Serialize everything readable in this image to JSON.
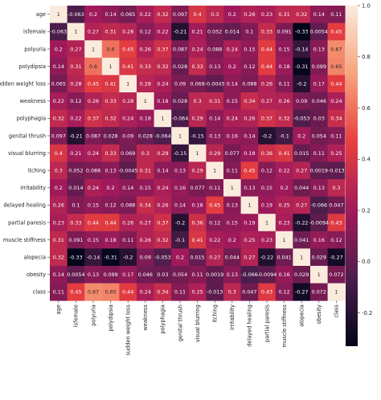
{
  "chart_data": {
    "type": "heatmap",
    "title": "",
    "xlabel": "",
    "ylabel": "",
    "labels": [
      "age",
      "isfemale",
      "polyuria",
      "polydipsia",
      "sudden weight loss",
      "weakness",
      "polyphagia",
      "genital thrush",
      "visual blurring",
      "itching",
      "irritability",
      "delayed healing",
      "partial paresis",
      "muscle stiffness",
      "alopecia",
      "obesity",
      "class"
    ],
    "matrix": [
      [
        "1",
        "-0.063",
        "0.2",
        "0.14",
        "0.065",
        "0.22",
        "0.32",
        "0.097",
        "0.4",
        "0.3",
        "0.2",
        "0.26",
        "0.23",
        "0.31",
        "0.32",
        "0.14",
        "0.11"
      ],
      [
        "-0.063",
        "1",
        "0.27",
        "0.31",
        "0.28",
        "0.12",
        "0.22",
        "-0.21",
        "0.21",
        "0.052",
        "0.014",
        "0.1",
        "0.33",
        "0.091",
        "-0.33",
        "0.0054",
        "0.45"
      ],
      [
        "0.2",
        "0.27",
        "1",
        "0.6",
        "0.45",
        "0.26",
        "0.37",
        "0.087",
        "0.24",
        "0.088",
        "0.24",
        "0.15",
        "0.44",
        "0.15",
        "-0.14",
        "0.13",
        "0.67"
      ],
      [
        "0.14",
        "0.31",
        "0.6",
        "1",
        "0.41",
        "0.33",
        "0.32",
        "0.028",
        "0.33",
        "0.13",
        "0.2",
        "0.12",
        "0.44",
        "0.18",
        "-0.31",
        "0.099",
        "0.65"
      ],
      [
        "0.065",
        "0.28",
        "0.45",
        "0.41",
        "1",
        "0.28",
        "0.24",
        "0.09",
        "0.069",
        "-0.0045",
        "0.14",
        "0.088",
        "0.26",
        "0.11",
        "-0.2",
        "0.17",
        "0.44"
      ],
      [
        "0.22",
        "0.12",
        "0.26",
        "0.33",
        "0.28",
        "1",
        "0.18",
        "0.028",
        "0.3",
        "0.31",
        "0.15",
        "0.34",
        "0.27",
        "0.26",
        "0.09",
        "0.046",
        "0.24"
      ],
      [
        "0.32",
        "0.22",
        "0.37",
        "0.32",
        "0.24",
        "0.18",
        "1",
        "-0.064",
        "0.29",
        "0.14",
        "0.24",
        "0.26",
        "0.37",
        "0.32",
        "-0.053",
        "0.03",
        "0.34"
      ],
      [
        "0.097",
        "-0.21",
        "0.087",
        "0.028",
        "0.09",
        "0.028",
        "-0.064",
        "1",
        "-0.15",
        "0.13",
        "0.16",
        "0.14",
        "-0.2",
        "-0.1",
        "0.2",
        "0.054",
        "0.11"
      ],
      [
        "0.4",
        "0.21",
        "0.24",
        "0.33",
        "0.069",
        "0.3",
        "0.29",
        "-0.15",
        "1",
        "0.29",
        "0.077",
        "0.18",
        "0.36",
        "0.41",
        "0.015",
        "0.11",
        "0.25"
      ],
      [
        "0.3",
        "0.052",
        "0.088",
        "0.13",
        "-0.0045",
        "0.31",
        "0.14",
        "0.13",
        "0.29",
        "1",
        "0.11",
        "0.45",
        "0.12",
        "0.22",
        "0.27",
        "0.0019",
        "-0.013"
      ],
      [
        "0.2",
        "0.014",
        "0.24",
        "0.2",
        "0.14",
        "0.15",
        "0.24",
        "0.16",
        "0.077",
        "0.11",
        "1",
        "0.13",
        "0.15",
        "0.2",
        "0.044",
        "0.13",
        "0.3"
      ],
      [
        "0.26",
        "0.1",
        "0.15",
        "0.12",
        "0.088",
        "0.34",
        "0.26",
        "0.14",
        "0.18",
        "0.45",
        "0.13",
        "1",
        "0.19",
        "0.25",
        "0.27",
        "-0.066",
        "0.047"
      ],
      [
        "0.23",
        "0.33",
        "0.44",
        "0.44",
        "0.26",
        "0.27",
        "0.37",
        "-0.2",
        "0.36",
        "0.12",
        "0.15",
        "0.19",
        "1",
        "0.23",
        "-0.22",
        "-0.0094",
        "0.43"
      ],
      [
        "0.31",
        "0.091",
        "0.15",
        "0.18",
        "0.11",
        "0.26",
        "0.32",
        "-0.1",
        "0.41",
        "0.22",
        "0.2",
        "0.25",
        "0.23",
        "1",
        "0.041",
        "0.16",
        "0.12"
      ],
      [
        "0.32",
        "-0.33",
        "-0.14",
        "-0.31",
        "-0.2",
        "0.09",
        "-0.053",
        "0.2",
        "0.015",
        "0.27",
        "0.044",
        "0.27",
        "-0.22",
        "0.041",
        "1",
        "0.029",
        "-0.27"
      ],
      [
        "0.14",
        "0.0054",
        "0.13",
        "0.099",
        "0.17",
        "0.046",
        "0.03",
        "0.054",
        "0.11",
        "0.0019",
        "0.13",
        "-0.066",
        "-0.0094",
        "0.16",
        "0.029",
        "1",
        "0.072"
      ],
      [
        "0.11",
        "0.45",
        "0.67",
        "0.65",
        "0.44",
        "0.24",
        "0.34",
        "0.11",
        "0.25",
        "-0.013",
        "0.3",
        "0.047",
        "0.43",
        "0.12",
        "-0.27",
        "0.072",
        "1"
      ]
    ],
    "colorbar": {
      "min": -0.33,
      "max": 1.0,
      "ticks": [
        "1.0",
        "0.8",
        "0.6",
        "0.4",
        "0.2",
        "0.0",
        "-0.2"
      ],
      "tick_values": [
        1.0,
        0.8,
        0.6,
        0.4,
        0.2,
        0.0,
        -0.2
      ],
      "colormap": [
        "#03051a",
        "#4c1d4b",
        "#a11a5b",
        "#e83f3f",
        "#f6a47c",
        "#faebdd"
      ]
    }
  }
}
